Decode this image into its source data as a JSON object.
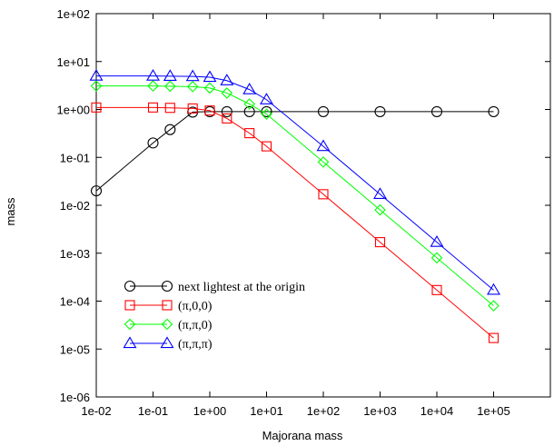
{
  "chart_data": {
    "type": "line",
    "x_scale": "log",
    "y_scale": "log",
    "xlabel": "Majorana mass",
    "ylabel": "mass",
    "xlim": [
      0.01,
      1000000
    ],
    "ylim": [
      1e-06,
      100
    ],
    "x_ticks": [
      "1e-02",
      "1e-01",
      "1e+00",
      "1e+01",
      "1e+02",
      "1e+03",
      "1e+04",
      "1e+05"
    ],
    "y_ticks": [
      "1e-06",
      "1e-05",
      "1e-04",
      "1e-03",
      "1e-02",
      "1e-01",
      "1e+00",
      "1e+01",
      "1e+02"
    ],
    "grid": false,
    "legend_position": "bottom-left",
    "series": [
      {
        "name": "next lightest at the origin",
        "marker": "circle",
        "color": "#000000",
        "x": [
          0.01,
          0.1,
          0.2,
          0.5,
          1,
          2,
          5,
          10,
          100,
          1000,
          10000,
          100000
        ],
        "y": [
          0.02,
          0.2,
          0.38,
          0.88,
          0.9,
          0.9,
          0.9,
          0.9,
          0.9,
          0.9,
          0.9,
          0.9
        ]
      },
      {
        "name": "(π,0,0)",
        "marker": "square",
        "color": "#ff0000",
        "x": [
          0.01,
          0.1,
          0.2,
          0.5,
          1,
          2,
          5,
          10,
          100,
          1000,
          10000,
          100000
        ],
        "y": [
          1.1,
          1.1,
          1.08,
          1.05,
          0.95,
          0.65,
          0.32,
          0.17,
          0.017,
          0.0017,
          0.00017,
          1.7e-05
        ]
      },
      {
        "name": "(π,π,0)",
        "marker": "diamond",
        "color": "#00ff00",
        "x": [
          0.01,
          0.1,
          0.2,
          0.5,
          1,
          2,
          5,
          10,
          100,
          1000,
          10000,
          100000
        ],
        "y": [
          3.1,
          3.1,
          3.05,
          3.0,
          2.8,
          2.2,
          1.3,
          0.8,
          0.08,
          0.008,
          0.0008,
          8e-05
        ]
      },
      {
        "name": "(π,π,π)",
        "marker": "triangle",
        "color": "#0000ff",
        "x": [
          0.01,
          0.1,
          0.2,
          0.5,
          1,
          2,
          5,
          10,
          100,
          1000,
          10000,
          100000
        ],
        "y": [
          5.0,
          5.0,
          4.95,
          4.9,
          4.7,
          4.0,
          2.6,
          1.6,
          0.17,
          0.017,
          0.0017,
          0.00017
        ]
      }
    ]
  }
}
